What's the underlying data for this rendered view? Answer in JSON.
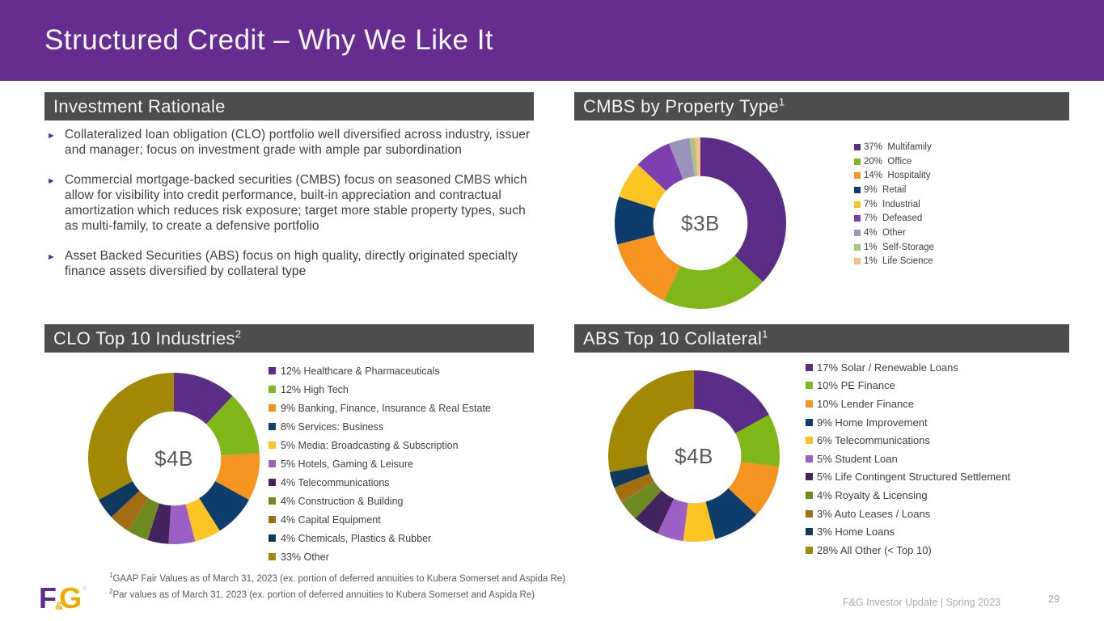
{
  "slide": {
    "title": "Structured Credit – Why We Like It",
    "logo": {
      "f": "F",
      "amp": "&",
      "g": "G",
      "registered": "®"
    }
  },
  "colors": {
    "header_purple": "#662D91",
    "section_header_gray": "#4D4D4D",
    "bullet_marker_purple": "#5E2C8E",
    "body_text_gray": "#3F3F3F",
    "footer_gray": "#ABABAB"
  },
  "rationale": {
    "header": "Investment Rationale",
    "bullets": [
      "Collateralized loan obligation (CLO) portfolio well diversified across industry, issuer and manager; focus on investment grade with ample par subordination",
      "Commercial mortgage-backed securities (CMBS) focus on seasoned CMBS which allow for visibility into credit performance, built-in appreciation and contractual amortization which reduces risk exposure; target more stable property types, such as multi-family, to create a defensive portfolio",
      "Asset Backed Securities (ABS) focus on high quality, directly originated specialty finance assets diversified by collateral type"
    ]
  },
  "chart_data": [
    {
      "id": "cmbs",
      "type": "pie",
      "title": "CMBS by Property Type",
      "title_sup": "1",
      "center_label": "$3B",
      "donut_hole": 0.55,
      "legend_position": "right",
      "labels": [
        "Multifamily",
        "Office",
        "Hospitality",
        "Retail",
        "Industrial",
        "Defeased",
        "Other",
        "Self-Storage",
        "Life Science"
      ],
      "values": [
        37,
        20,
        14,
        9,
        7,
        7,
        4,
        1,
        1
      ],
      "legend": [
        "37%  Multifamily",
        "20%  Office",
        "14%  Hospitality",
        "9%  Retail",
        "7%  Industrial",
        "7%  Defeased",
        "4%  Other",
        "1%  Self-Storage",
        "1%  Life Science"
      ],
      "colors": [
        "#5C2D87",
        "#7FB718",
        "#F79420",
        "#0D3D6D",
        "#FDC422",
        "#7C3FAF",
        "#9B93BC",
        "#A8C77E",
        "#F9BC8F"
      ]
    },
    {
      "id": "clo",
      "type": "pie",
      "title": "CLO Top 10 Industries",
      "title_sup": "2",
      "center_label": "$4B",
      "donut_hole": 0.55,
      "legend_position": "right",
      "labels": [
        "Healthcare & Pharmaceuticals",
        "High Tech",
        "Banking, Finance, Insurance & Real Estate",
        "Services: Business",
        "Media: Broadcasting & Subscription",
        "Hotels, Gaming & Leisure",
        "Telecommunications",
        "Construction & Building",
        "Capital Equipment",
        "Chemicals, Plastics & Rubber",
        "Other"
      ],
      "values": [
        12,
        12,
        9,
        8,
        5,
        5,
        4,
        4,
        4,
        4,
        33
      ],
      "legend": [
        "12% Healthcare & Pharmaceuticals",
        "12% High Tech",
        "9% Banking, Finance, Insurance & Real Estate",
        "8% Services: Business",
        "5% Media: Broadcasting & Subscription",
        "5% Hotels, Gaming & Leisure",
        "4% Telecommunications",
        "4% Construction & Building",
        "4% Capital Equipment",
        "4% Chemicals, Plastics & Rubber",
        "33% Other"
      ],
      "colors": [
        "#5C2D87",
        "#7FB718",
        "#F79420",
        "#0D3D6D",
        "#FDC422",
        "#9C5FC4",
        "#43245E",
        "#6E8822",
        "#A36E12",
        "#0F3A5D",
        "#A38803"
      ]
    },
    {
      "id": "abs",
      "type": "pie",
      "title": "ABS Top 10 Collateral",
      "title_sup": "1",
      "center_label": "$4B",
      "donut_hole": 0.55,
      "legend_position": "right",
      "labels": [
        "Solar / Renewable Loans",
        "PE Finance",
        "Lender Finance",
        "Home Improvement",
        "Telecommunications",
        "Student Loan",
        "Life Contingent Structured Settlement",
        "Royalty & Licensing",
        "Auto Leases / Loans",
        "Home Loans",
        "All Other (< Top 10)"
      ],
      "values": [
        17,
        10,
        10,
        9,
        6,
        5,
        5,
        4,
        3,
        3,
        28
      ],
      "legend": [
        "17% Solar / Renewable Loans",
        "10% PE Finance",
        "10% Lender Finance",
        "9% Home Improvement",
        "6% Telecommunications",
        "5% Student Loan",
        "5% Life Contingent Structured Settlement",
        "4% Royalty & Licensing",
        "3% Auto Leases / Loans",
        "3% Home Loans",
        "28% All Other (< Top 10)"
      ],
      "colors": [
        "#5C2D87",
        "#7FB718",
        "#F79420",
        "#0D3D6D",
        "#FDC422",
        "#9C5FC4",
        "#43245E",
        "#6E8822",
        "#A36E12",
        "#0F3A5D",
        "#A38803"
      ]
    }
  ],
  "footnotes": [
    {
      "sup": "1",
      "text": "GAAP Fair Values as of March 31, 2023 (ex. portion of deferred annuities to Kubera Somerset and Aspida Re)"
    },
    {
      "sup": "2",
      "text": "Par values as of March 31, 2023 (ex. portion of deferred annuities to Kubera Somerset and Aspida Re)"
    }
  ],
  "footer": {
    "text": "F&G Investor Update | Spring 2023",
    "page": "29"
  }
}
